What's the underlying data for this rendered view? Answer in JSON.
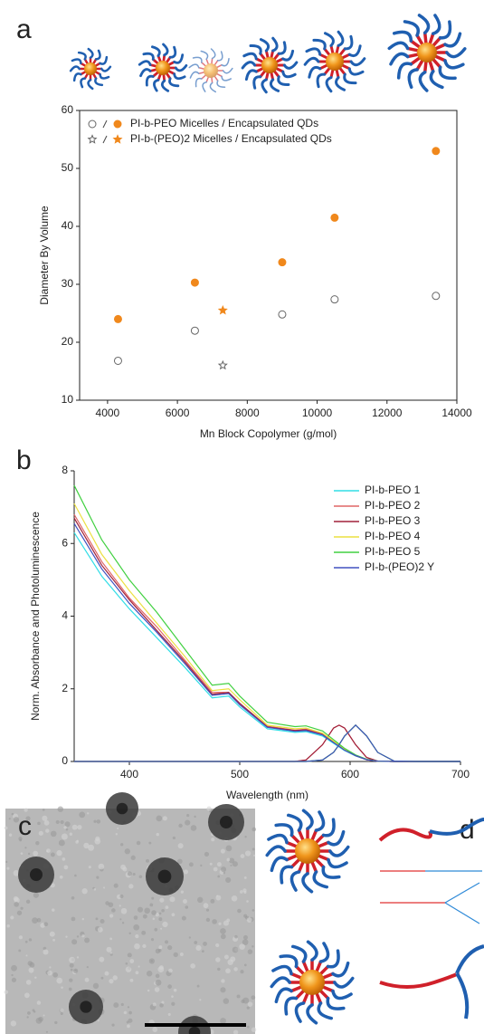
{
  "panel_labels": [
    "a",
    "b",
    "c",
    "d"
  ],
  "chart_data": [
    {
      "type": "scatter",
      "y_label": "Diameter By Volume",
      "x_label": "Mn Block Copolymer (g/mol)",
      "legend_entries": [
        "PI-b-PEO Micelles / Encapsulated QDs",
        "PI-b-(PEO)2 Micelles / Encapsulated QDs"
      ],
      "legend": "upper left",
      "xlim": [
        3200,
        14000
      ],
      "xticks": [
        4000,
        6000,
        8000,
        10000,
        12000,
        14000
      ],
      "ylim": [
        10,
        60
      ],
      "yticks": [
        10,
        20,
        30,
        40,
        50,
        60
      ],
      "series": [
        {
          "marker": "circle",
          "filled": false,
          "color": "#666666",
          "x": [
            4300,
            6500,
            9000,
            10500,
            13400
          ],
          "values": [
            16.8,
            22,
            24.8,
            27.4,
            28
          ]
        },
        {
          "marker": "circle",
          "filled": true,
          "color": "#f0881c",
          "x": [
            4300,
            6500,
            9000,
            10500,
            13400
          ],
          "values": [
            24,
            30.3,
            33.8,
            41.5,
            53
          ]
        },
        {
          "marker": "star",
          "filled": false,
          "color": "#666666",
          "x": [
            7300
          ],
          "values": [
            16
          ]
        },
        {
          "marker": "star",
          "filled": true,
          "color": "#f0881c",
          "x": [
            7300
          ],
          "values": [
            25.5
          ]
        }
      ]
    },
    {
      "type": "line",
      "y_label": "Norm. Absorbance and Photoluminescence",
      "x_label": "Wavelength (nm)",
      "legend": "upper right",
      "xlim": [
        350,
        700
      ],
      "xticks": [
        400,
        500,
        600,
        700
      ],
      "ylim": [
        0,
        8
      ],
      "yticks": [
        0,
        2,
        4,
        6,
        8
      ],
      "x": [
        350,
        375,
        400,
        425,
        450,
        475,
        490,
        500,
        525,
        550,
        560,
        575,
        585,
        590,
        595,
        605,
        615,
        625,
        640,
        660,
        700
      ],
      "series": [
        {
          "name": "PI-b-PEO 1",
          "color": "#30dde6",
          "values": [
            6.3,
            5.1,
            4.2,
            3.4,
            2.6,
            1.75,
            1.8,
            1.5,
            0.9,
            0.8,
            0.82,
            0.7,
            0.5,
            0.4,
            0.3,
            0.15,
            0.05,
            0.01,
            0,
            0,
            0
          ],
          "emission": [
            0,
            0,
            0,
            0,
            0,
            0,
            0,
            0,
            0,
            0,
            0,
            0.04,
            0.25,
            0.46,
            0.7,
            1,
            0.7,
            0.25,
            0.01,
            0,
            0
          ]
        },
        {
          "name": "PI-b-PEO 2",
          "color": "#e06666",
          "values": [
            6.8,
            5.5,
            4.5,
            3.7,
            2.8,
            1.9,
            1.9,
            1.6,
            0.97,
            0.86,
            0.89,
            0.76,
            0.54,
            0.43,
            0.32,
            0.16,
            0.05,
            0.01,
            0,
            0,
            0
          ],
          "emission": [
            0,
            0,
            0,
            0,
            0,
            0,
            0,
            0,
            0,
            0,
            0.04,
            0.46,
            0.92,
            1,
            0.92,
            0.46,
            0.11,
            0.01,
            0,
            0,
            0
          ]
        },
        {
          "name": "PI-b-PEO 3",
          "color": "#a0203a",
          "values": [
            6.7,
            5.4,
            4.45,
            3.6,
            2.75,
            1.85,
            1.9,
            1.6,
            0.95,
            0.85,
            0.87,
            0.74,
            0.53,
            0.42,
            0.32,
            0.16,
            0.05,
            0.01,
            0,
            0,
            0
          ],
          "emission": [
            0,
            0,
            0,
            0,
            0,
            0,
            0,
            0,
            0,
            0,
            0.04,
            0.46,
            0.92,
            1,
            0.92,
            0.46,
            0.11,
            0.01,
            0,
            0,
            0
          ]
        },
        {
          "name": "PI-b-PEO 4",
          "color": "#ece040",
          "values": [
            7.1,
            5.7,
            4.7,
            3.8,
            2.9,
            1.95,
            2.0,
            1.7,
            1.0,
            0.9,
            0.92,
            0.78,
            0.56,
            0.45,
            0.34,
            0.17,
            0.06,
            0.01,
            0,
            0,
            0
          ],
          "emission": [
            0,
            0,
            0,
            0,
            0,
            0,
            0,
            0,
            0,
            0,
            0,
            0.04,
            0.25,
            0.46,
            0.7,
            1,
            0.7,
            0.25,
            0.01,
            0,
            0
          ]
        },
        {
          "name": "PI-b-PEO 5",
          "color": "#40d040",
          "values": [
            7.6,
            6.1,
            5.0,
            4.1,
            3.1,
            2.1,
            2.15,
            1.8,
            1.08,
            0.96,
            0.98,
            0.84,
            0.6,
            0.48,
            0.36,
            0.18,
            0.06,
            0.01,
            0,
            0,
            0
          ],
          "emission": [
            0,
            0,
            0,
            0,
            0,
            0,
            0,
            0,
            0,
            0,
            0,
            0.04,
            0.25,
            0.46,
            0.7,
            1,
            0.7,
            0.25,
            0.01,
            0,
            0
          ]
        },
        {
          "name": "PI-b-(PEO)2 Y",
          "color": "#4050c0",
          "values": [
            6.55,
            5.3,
            4.35,
            3.55,
            2.7,
            1.82,
            1.87,
            1.56,
            0.94,
            0.83,
            0.85,
            0.73,
            0.52,
            0.42,
            0.31,
            0.16,
            0.05,
            0.01,
            0,
            0,
            0
          ],
          "emission": [
            0,
            0,
            0,
            0,
            0,
            0,
            0,
            0,
            0,
            0,
            0,
            0.04,
            0.25,
            0.46,
            0.7,
            1,
            0.7,
            0.25,
            0.01,
            0,
            0
          ]
        }
      ]
    }
  ]
}
